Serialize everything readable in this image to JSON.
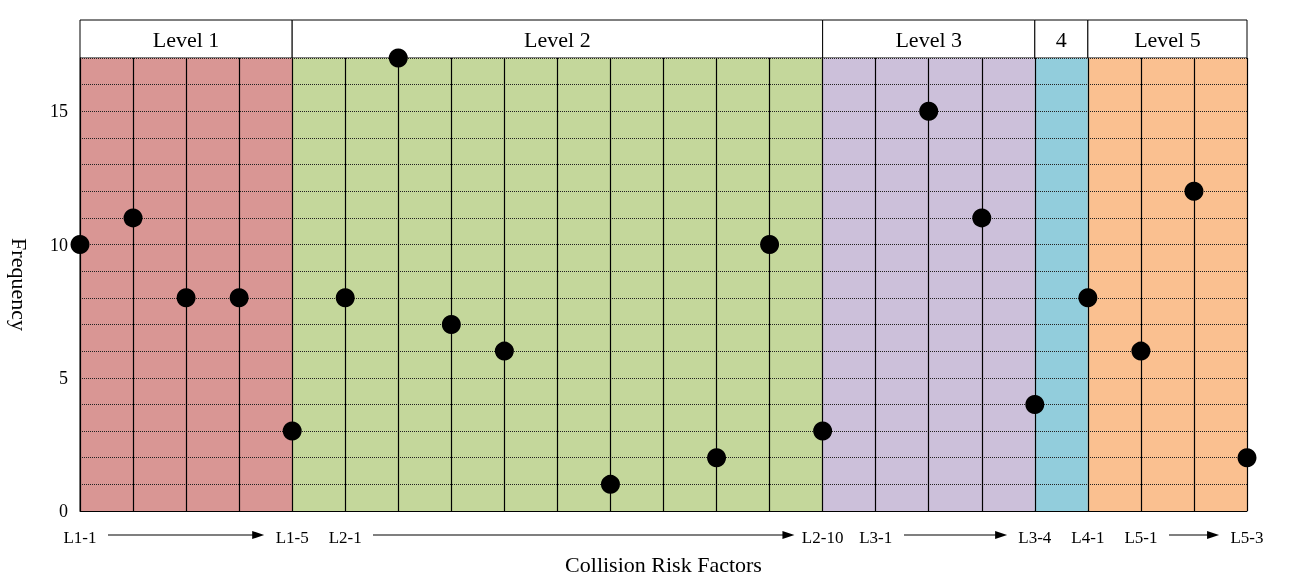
{
  "chart_data": {
    "type": "scatter",
    "xlabel": "Collision Risk Factors",
    "ylabel": "Frequency",
    "categories": [
      "L1-1",
      null,
      null,
      null,
      "L1-5",
      "L2-1",
      null,
      null,
      null,
      null,
      null,
      null,
      null,
      null,
      "L2-10",
      "L3-1",
      null,
      null,
      "L3-4",
      "L4-1",
      "L5-1",
      null,
      "L5-3"
    ],
    "series": [
      {
        "color": "#000000",
        "values": [
          10,
          11,
          8,
          8,
          3,
          8,
          17,
          7,
          6,
          null,
          1,
          null,
          2,
          10,
          3,
          null,
          15,
          11,
          4,
          8,
          6,
          12,
          2
        ]
      }
    ],
    "ylim": [
      0,
      17
    ],
    "yticks": [
      0,
      {
        "value": 1,
        "label": null
      },
      {
        "value": 2,
        "label": null
      },
      {
        "value": 3,
        "label": null
      },
      {
        "value": 4,
        "label": null
      },
      5,
      {
        "value": 6,
        "label": null
      },
      {
        "value": 7,
        "label": null
      },
      {
        "value": 8,
        "label": null
      },
      {
        "value": 9,
        "label": null
      },
      10,
      {
        "value": 11,
        "label": null
      },
      {
        "value": 12,
        "label": null
      },
      {
        "value": 13,
        "label": null
      },
      {
        "value": 14,
        "label": null
      },
      15,
      {
        "value": 16,
        "label": null
      },
      {
        "value": 17,
        "label": null
      }
    ],
    "bands": [
      {
        "axis": "x",
        "from": "L1-1",
        "to": "L1-5",
        "label": "Level 1",
        "color": "#d99694"
      },
      {
        "axis": "x",
        "from": "L1-5",
        "to": "L2-10",
        "label": "Level 2",
        "color": "#c4d79b"
      },
      {
        "axis": "x",
        "from": "L2-10",
        "to": "L3-4",
        "label": "Level 3",
        "color": "#ccc0da"
      },
      {
        "axis": "x",
        "from": "L3-4",
        "to": "L4-1",
        "label": "4",
        "color": "#92cddc"
      },
      {
        "axis": "x",
        "from": "L4-1",
        "to": "L5-3",
        "label": "Level 5",
        "color": "#fac090"
      }
    ],
    "grid": true,
    "marker": "circle"
  }
}
